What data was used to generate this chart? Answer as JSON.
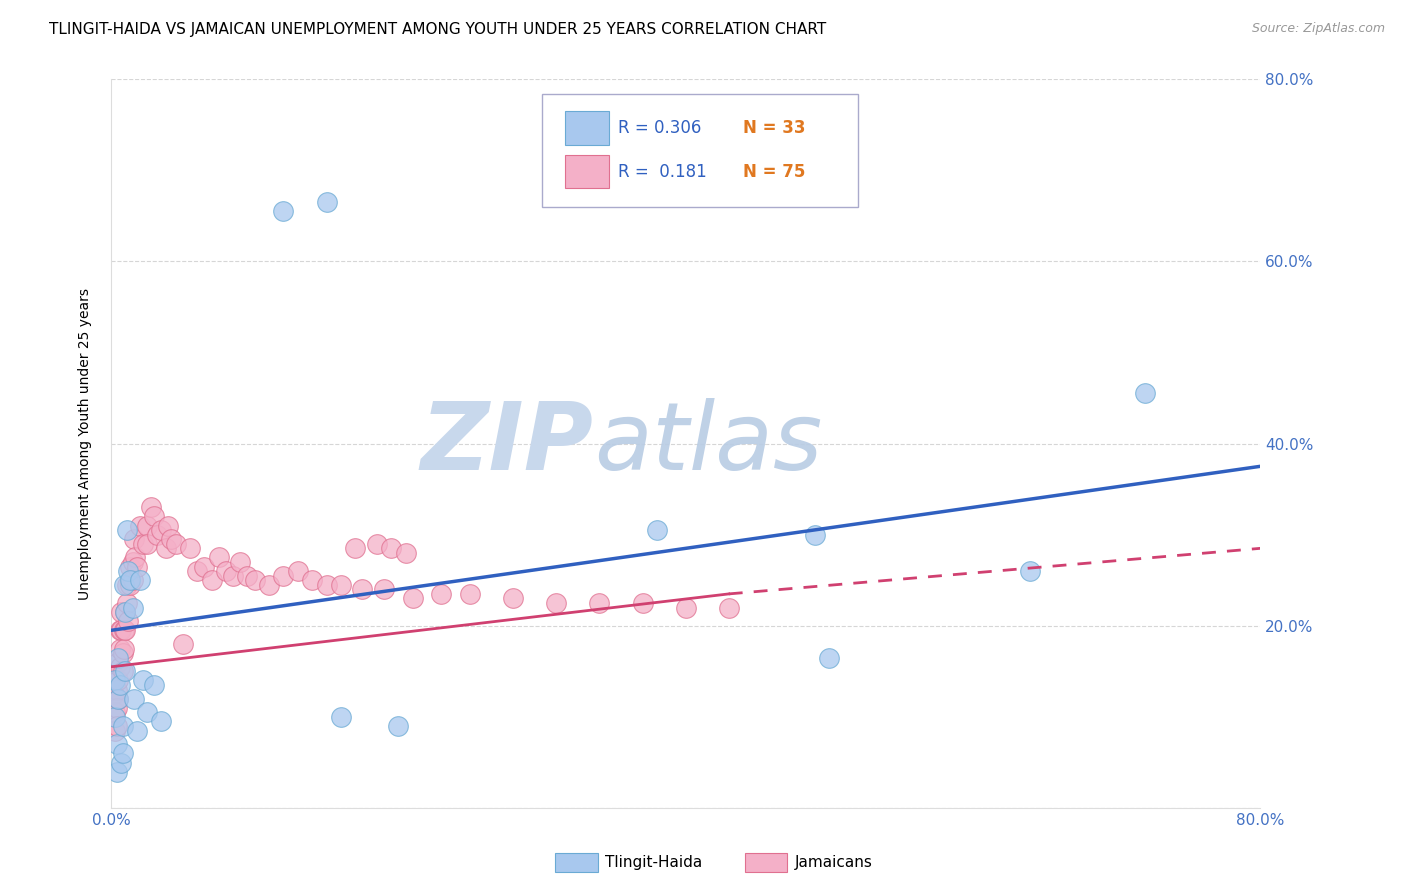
{
  "title": "TLINGIT-HAIDA VS JAMAICAN UNEMPLOYMENT AMONG YOUTH UNDER 25 YEARS CORRELATION CHART",
  "source": "Source: ZipAtlas.com",
  "ylabel": "Unemployment Among Youth under 25 years",
  "xmin": 0.0,
  "xmax": 0.8,
  "ymin": 0.0,
  "ymax": 0.8,
  "watermark_zip": "ZIP",
  "watermark_atlas": "atlas",
  "tlingit_color": "#a8c8ee",
  "tlingit_edge": "#6aaad4",
  "jamaican_color": "#f4b0c8",
  "jamaican_edge": "#e07090",
  "tlingit_line_color": "#3060c0",
  "jamaican_line_color": "#d04070",
  "background_color": "#ffffff",
  "grid_color": "#cccccc",
  "tick_color": "#4472c4",
  "legend_r1_color": "#3060c0",
  "legend_n1_color": "#e07820",
  "legend_r2_color": "#3060c0",
  "legend_n2_color": "#e07820",
  "tlingit_x": [
    0.003,
    0.003,
    0.004,
    0.004,
    0.005,
    0.005,
    0.006,
    0.007,
    0.008,
    0.008,
    0.009,
    0.01,
    0.01,
    0.011,
    0.012,
    0.013,
    0.015,
    0.016,
    0.018,
    0.02,
    0.022,
    0.025,
    0.03,
    0.035,
    0.12,
    0.15,
    0.16,
    0.2,
    0.38,
    0.49,
    0.5,
    0.64,
    0.72
  ],
  "tlingit_y": [
    0.14,
    0.1,
    0.07,
    0.04,
    0.12,
    0.165,
    0.135,
    0.05,
    0.06,
    0.09,
    0.245,
    0.215,
    0.15,
    0.305,
    0.26,
    0.25,
    0.22,
    0.12,
    0.085,
    0.25,
    0.14,
    0.105,
    0.135,
    0.095,
    0.655,
    0.665,
    0.1,
    0.09,
    0.305,
    0.3,
    0.165,
    0.26,
    0.455
  ],
  "jamaican_x": [
    0.002,
    0.002,
    0.003,
    0.003,
    0.004,
    0.004,
    0.004,
    0.005,
    0.005,
    0.005,
    0.006,
    0.006,
    0.006,
    0.007,
    0.007,
    0.008,
    0.008,
    0.009,
    0.009,
    0.01,
    0.01,
    0.011,
    0.011,
    0.012,
    0.013,
    0.013,
    0.015,
    0.015,
    0.016,
    0.017,
    0.018,
    0.02,
    0.022,
    0.025,
    0.025,
    0.028,
    0.03,
    0.032,
    0.035,
    0.038,
    0.04,
    0.042,
    0.045,
    0.05,
    0.055,
    0.06,
    0.065,
    0.07,
    0.075,
    0.08,
    0.085,
    0.09,
    0.095,
    0.1,
    0.11,
    0.12,
    0.13,
    0.14,
    0.15,
    0.16,
    0.175,
    0.19,
    0.21,
    0.23,
    0.25,
    0.28,
    0.31,
    0.34,
    0.37,
    0.4,
    0.43,
    0.17,
    0.185,
    0.195,
    0.205
  ],
  "jamaican_y": [
    0.145,
    0.125,
    0.105,
    0.085,
    0.13,
    0.11,
    0.09,
    0.16,
    0.14,
    0.12,
    0.195,
    0.175,
    0.155,
    0.215,
    0.195,
    0.17,
    0.15,
    0.195,
    0.175,
    0.215,
    0.195,
    0.245,
    0.225,
    0.205,
    0.265,
    0.245,
    0.27,
    0.25,
    0.295,
    0.275,
    0.265,
    0.31,
    0.29,
    0.31,
    0.29,
    0.33,
    0.32,
    0.3,
    0.305,
    0.285,
    0.31,
    0.295,
    0.29,
    0.18,
    0.285,
    0.26,
    0.265,
    0.25,
    0.275,
    0.26,
    0.255,
    0.27,
    0.255,
    0.25,
    0.245,
    0.255,
    0.26,
    0.25,
    0.245,
    0.245,
    0.24,
    0.24,
    0.23,
    0.235,
    0.235,
    0.23,
    0.225,
    0.225,
    0.225,
    0.22,
    0.22,
    0.285,
    0.29,
    0.285,
    0.28
  ]
}
